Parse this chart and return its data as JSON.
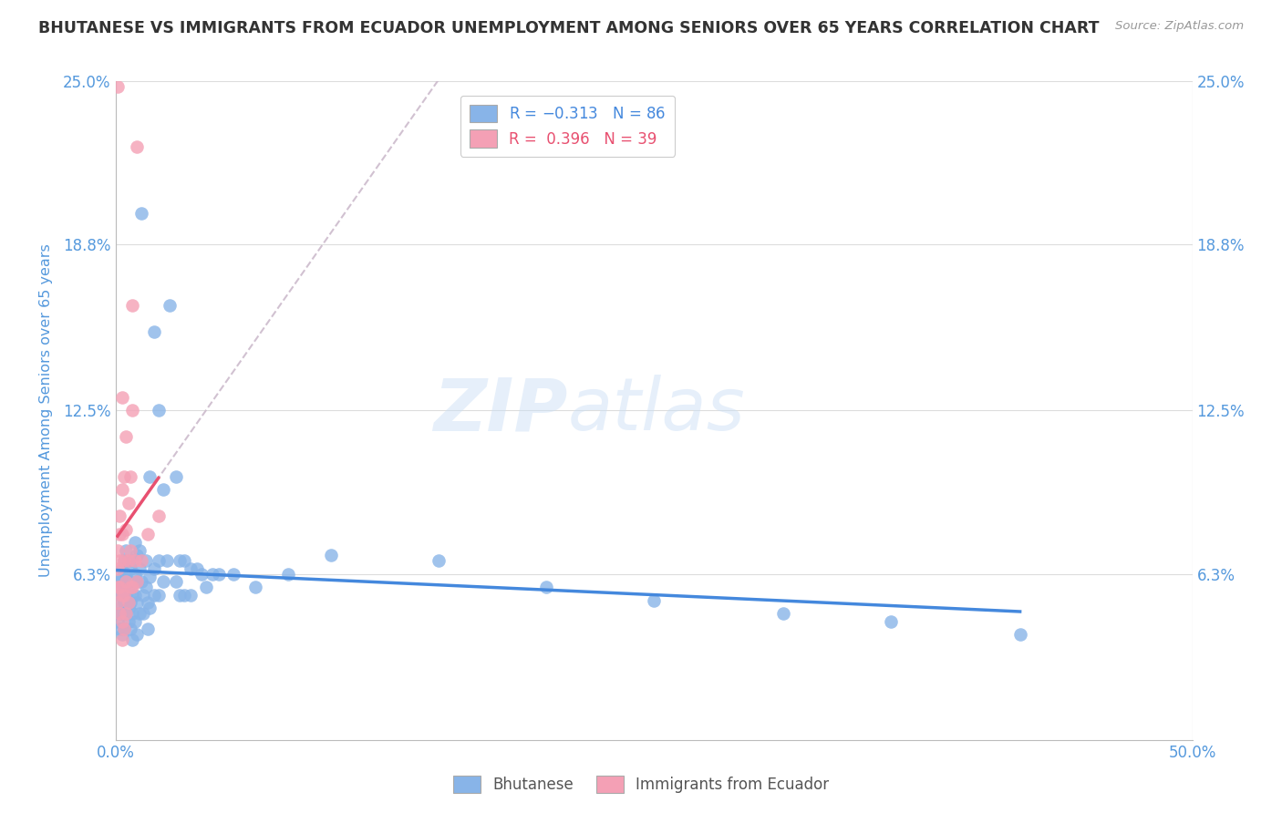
{
  "title": "BHUTANESE VS IMMIGRANTS FROM ECUADOR UNEMPLOYMENT AMONG SENIORS OVER 65 YEARS CORRELATION CHART",
  "source": "Source: ZipAtlas.com",
  "ylabel": "Unemployment Among Seniors over 65 years",
  "xlim": [
    0.0,
    0.5
  ],
  "ylim": [
    0.0,
    0.25
  ],
  "xticks": [
    0.0,
    0.5
  ],
  "xticklabels": [
    "0.0%",
    "50.0%"
  ],
  "yticks": [
    0.063,
    0.125,
    0.188,
    0.25
  ],
  "yticklabels": [
    "6.3%",
    "12.5%",
    "18.8%",
    "25.0%"
  ],
  "background_color": "#ffffff",
  "grid_color": "#dddddd",
  "watermark_line1": "ZIP",
  "watermark_line2": "atlas",
  "bhutanese_color": "#88b4e8",
  "ecuador_color": "#f4a0b5",
  "blue_line_color": "#4488dd",
  "pink_line_color": "#e85070",
  "dashed_line_color": "#ccbbcc",
  "title_color": "#333333",
  "title_fontsize": 12.5,
  "axis_label_color": "#5599dd",
  "tick_color": "#5599dd",
  "bhutanese_scatter": [
    [
      0.001,
      0.05
    ],
    [
      0.001,
      0.045
    ],
    [
      0.001,
      0.058
    ],
    [
      0.002,
      0.048
    ],
    [
      0.002,
      0.055
    ],
    [
      0.002,
      0.06
    ],
    [
      0.002,
      0.042
    ],
    [
      0.003,
      0.062
    ],
    [
      0.003,
      0.055
    ],
    [
      0.003,
      0.048
    ],
    [
      0.003,
      0.04
    ],
    [
      0.003,
      0.065
    ],
    [
      0.004,
      0.058
    ],
    [
      0.004,
      0.052
    ],
    [
      0.004,
      0.068
    ],
    [
      0.004,
      0.042
    ],
    [
      0.005,
      0.063
    ],
    [
      0.005,
      0.055
    ],
    [
      0.005,
      0.048
    ],
    [
      0.005,
      0.072
    ],
    [
      0.006,
      0.06
    ],
    [
      0.006,
      0.05
    ],
    [
      0.006,
      0.068
    ],
    [
      0.006,
      0.045
    ],
    [
      0.007,
      0.065
    ],
    [
      0.007,
      0.058
    ],
    [
      0.007,
      0.052
    ],
    [
      0.007,
      0.042
    ],
    [
      0.008,
      0.068
    ],
    [
      0.008,
      0.055
    ],
    [
      0.008,
      0.048
    ],
    [
      0.008,
      0.038
    ],
    [
      0.009,
      0.063
    ],
    [
      0.009,
      0.055
    ],
    [
      0.009,
      0.075
    ],
    [
      0.009,
      0.045
    ],
    [
      0.01,
      0.07
    ],
    [
      0.01,
      0.06
    ],
    [
      0.01,
      0.052
    ],
    [
      0.01,
      0.04
    ],
    [
      0.011,
      0.065
    ],
    [
      0.011,
      0.048
    ],
    [
      0.011,
      0.072
    ],
    [
      0.012,
      0.2
    ],
    [
      0.012,
      0.06
    ],
    [
      0.013,
      0.055
    ],
    [
      0.013,
      0.048
    ],
    [
      0.014,
      0.068
    ],
    [
      0.014,
      0.058
    ],
    [
      0.015,
      0.052
    ],
    [
      0.015,
      0.042
    ],
    [
      0.016,
      0.1
    ],
    [
      0.016,
      0.062
    ],
    [
      0.016,
      0.05
    ],
    [
      0.018,
      0.155
    ],
    [
      0.018,
      0.065
    ],
    [
      0.018,
      0.055
    ],
    [
      0.02,
      0.125
    ],
    [
      0.02,
      0.068
    ],
    [
      0.02,
      0.055
    ],
    [
      0.022,
      0.095
    ],
    [
      0.022,
      0.06
    ],
    [
      0.024,
      0.068
    ],
    [
      0.025,
      0.165
    ],
    [
      0.028,
      0.1
    ],
    [
      0.028,
      0.06
    ],
    [
      0.03,
      0.068
    ],
    [
      0.03,
      0.055
    ],
    [
      0.032,
      0.068
    ],
    [
      0.032,
      0.055
    ],
    [
      0.035,
      0.065
    ],
    [
      0.035,
      0.055
    ],
    [
      0.038,
      0.065
    ],
    [
      0.04,
      0.063
    ],
    [
      0.042,
      0.058
    ],
    [
      0.045,
      0.063
    ],
    [
      0.048,
      0.063
    ],
    [
      0.055,
      0.063
    ],
    [
      0.065,
      0.058
    ],
    [
      0.08,
      0.063
    ],
    [
      0.1,
      0.07
    ],
    [
      0.15,
      0.068
    ],
    [
      0.2,
      0.058
    ],
    [
      0.25,
      0.053
    ],
    [
      0.31,
      0.048
    ],
    [
      0.36,
      0.045
    ],
    [
      0.42,
      0.04
    ]
  ],
  "ecuador_scatter": [
    [
      0.001,
      0.072
    ],
    [
      0.001,
      0.065
    ],
    [
      0.001,
      0.058
    ],
    [
      0.001,
      0.052
    ],
    [
      0.001,
      0.248
    ],
    [
      0.002,
      0.085
    ],
    [
      0.002,
      0.078
    ],
    [
      0.002,
      0.068
    ],
    [
      0.002,
      0.058
    ],
    [
      0.002,
      0.048
    ],
    [
      0.003,
      0.095
    ],
    [
      0.003,
      0.078
    ],
    [
      0.003,
      0.13
    ],
    [
      0.003,
      0.055
    ],
    [
      0.003,
      0.045
    ],
    [
      0.003,
      0.038
    ],
    [
      0.004,
      0.1
    ],
    [
      0.004,
      0.068
    ],
    [
      0.004,
      0.055
    ],
    [
      0.004,
      0.042
    ],
    [
      0.005,
      0.115
    ],
    [
      0.005,
      0.08
    ],
    [
      0.005,
      0.06
    ],
    [
      0.005,
      0.048
    ],
    [
      0.006,
      0.09
    ],
    [
      0.006,
      0.068
    ],
    [
      0.006,
      0.052
    ],
    [
      0.007,
      0.1
    ],
    [
      0.007,
      0.072
    ],
    [
      0.007,
      0.058
    ],
    [
      0.008,
      0.165
    ],
    [
      0.008,
      0.125
    ],
    [
      0.008,
      0.058
    ],
    [
      0.009,
      0.068
    ],
    [
      0.01,
      0.225
    ],
    [
      0.01,
      0.06
    ],
    [
      0.012,
      0.068
    ],
    [
      0.015,
      0.078
    ],
    [
      0.02,
      0.085
    ]
  ]
}
